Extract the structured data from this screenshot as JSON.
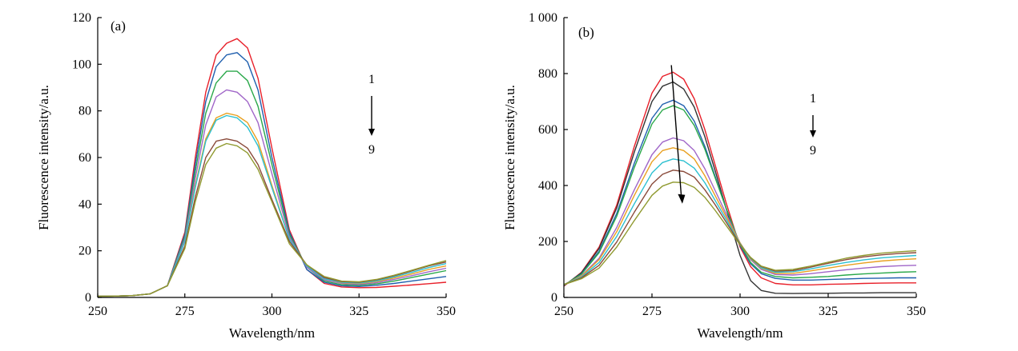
{
  "chart_data": [
    {
      "type": "line",
      "panel_label": "(a)",
      "xlabel": "Wavelength/nm",
      "ylabel": "Fluorescence intensity/a.u.",
      "xlim": [
        250,
        350
      ],
      "ylim": [
        0,
        120
      ],
      "xticks": [
        250,
        275,
        300,
        325,
        350
      ],
      "yticks": [
        0,
        20,
        40,
        60,
        80,
        100,
        120
      ],
      "xtick_labels": [
        "250",
        "275",
        "300",
        "325",
        "350"
      ],
      "ytick_labels": [
        "0",
        "20",
        "40",
        "60",
        "80",
        "100",
        "120"
      ],
      "grid": false,
      "annotation": {
        "top": "1",
        "bottom": "9",
        "direction": "down"
      },
      "x": [
        250,
        255,
        260,
        265,
        270,
        275,
        278,
        281,
        284,
        287,
        290,
        293,
        296,
        300,
        305,
        310,
        315,
        320,
        325,
        330,
        335,
        340,
        345,
        350
      ],
      "series": [
        {
          "color": "#e8202a",
          "values": [
            0.5,
            0.6,
            0.8,
            1.5,
            5,
            28,
            60,
            88,
            104,
            109,
            111,
            107,
            94,
            64,
            29,
            12,
            6,
            4.5,
            4.2,
            4.3,
            4.8,
            5.3,
            5.9,
            6.5
          ]
        },
        {
          "color": "#1f5fae",
          "values": [
            0.5,
            0.6,
            0.8,
            1.5,
            5,
            27,
            57,
            84,
            99,
            104,
            105,
            101,
            89,
            60,
            28,
            12,
            6.5,
            5,
            4.7,
            5.2,
            6,
            7,
            8,
            9
          ]
        },
        {
          "color": "#2aa84a",
          "values": [
            0.5,
            0.6,
            0.8,
            1.5,
            5,
            26,
            54,
            79,
            92,
            97,
            97,
            93,
            82,
            57,
            27,
            13,
            7,
            5.5,
            5.2,
            5.8,
            7,
            8.5,
            10,
            11.5
          ]
        },
        {
          "color": "#a066c8",
          "values": [
            0.5,
            0.6,
            0.8,
            1.5,
            5,
            25,
            51,
            74,
            86,
            89,
            88,
            84,
            75,
            53,
            26,
            13,
            7.5,
            6,
            5.6,
            6.3,
            7.7,
            9.3,
            11,
            12.5
          ]
        },
        {
          "color": "#e8a020",
          "values": [
            0.5,
            0.6,
            0.8,
            1.5,
            5,
            24,
            48,
            68,
            77,
            79,
            78,
            75,
            67,
            48,
            25,
            13.5,
            8,
            6.3,
            6,
            6.8,
            8.3,
            10,
            12,
            13.5
          ]
        },
        {
          "color": "#2cc0d0",
          "values": [
            0.5,
            0.6,
            0.8,
            1.5,
            5,
            24,
            47,
            67,
            76,
            78,
            77,
            73,
            65,
            47,
            25,
            13.5,
            8,
            6.5,
            6.2,
            7.1,
            8.8,
            10.7,
            12.8,
            14.5
          ]
        },
        {
          "color": "#8a4a3a",
          "values": [
            0.5,
            0.6,
            0.8,
            1.5,
            5,
            22,
            43,
            60,
            67,
            68,
            67,
            64,
            57,
            42,
            24,
            14,
            8.5,
            6.8,
            6.5,
            7.5,
            9.3,
            11.3,
            13.5,
            15.2
          ]
        },
        {
          "color": "#909a30",
          "values": [
            0.5,
            0.6,
            0.8,
            1.5,
            5,
            21,
            41,
            57,
            64,
            66,
            65,
            62,
            55,
            41,
            23,
            14,
            9,
            7,
            6.7,
            7.7,
            9.5,
            11.6,
            13.8,
            15.8
          ]
        }
      ]
    },
    {
      "type": "line",
      "panel_label": "(b)",
      "xlabel": "Wavelength/nm",
      "ylabel": "Fluorescence intensity/a.u.",
      "xlim": [
        250,
        350
      ],
      "ylim": [
        0,
        1000
      ],
      "xticks": [
        250,
        275,
        300,
        325,
        350
      ],
      "yticks": [
        0,
        200,
        400,
        600,
        800,
        1000
      ],
      "xtick_labels": [
        "250",
        "275",
        "300",
        "325",
        "350"
      ],
      "ytick_labels": [
        "0",
        "200",
        "400",
        "600",
        "800",
        "1 000"
      ],
      "grid": false,
      "annotation": {
        "top": "1",
        "bottom": "9",
        "direction": "down"
      },
      "x": [
        250,
        255,
        260,
        265,
        270,
        275,
        278,
        281,
        284,
        287,
        290,
        293,
        296,
        300,
        303,
        306,
        310,
        315,
        320,
        325,
        330,
        335,
        340,
        345,
        350
      ],
      "series": [
        {
          "color": "#e8202a",
          "values": [
            40,
            90,
            180,
            330,
            540,
            730,
            790,
            805,
            780,
            710,
            600,
            470,
            340,
            180,
            110,
            70,
            50,
            45,
            45,
            47,
            48,
            50,
            51,
            52,
            52
          ]
        },
        {
          "color": "#333333",
          "values": [
            42,
            88,
            175,
            320,
            520,
            700,
            755,
            770,
            745,
            680,
            575,
            450,
            320,
            150,
            60,
            25,
            15,
            14,
            15,
            15,
            16,
            16,
            17,
            17,
            17
          ]
        },
        {
          "color": "#1f5fae",
          "values": [
            43,
            85,
            165,
            300,
            480,
            640,
            690,
            705,
            685,
            630,
            540,
            430,
            320,
            185,
            120,
            85,
            68,
            62,
            62,
            64,
            66,
            68,
            69,
            70,
            70
          ]
        },
        {
          "color": "#2aa84a",
          "values": [
            44,
            83,
            160,
            290,
            465,
            620,
            670,
            685,
            670,
            615,
            530,
            425,
            320,
            190,
            125,
            90,
            75,
            70,
            72,
            75,
            80,
            84,
            87,
            90,
            92
          ]
        },
        {
          "color": "#a066c8",
          "values": [
            45,
            78,
            140,
            250,
            385,
            510,
            555,
            570,
            560,
            525,
            460,
            380,
            300,
            195,
            135,
            100,
            82,
            80,
            85,
            92,
            99,
            105,
            110,
            113,
            115
          ]
        },
        {
          "color": "#e8a020",
          "values": [
            46,
            76,
            135,
            235,
            365,
            485,
            525,
            535,
            525,
            495,
            435,
            362,
            290,
            195,
            138,
            104,
            86,
            86,
            95,
            105,
            115,
            123,
            130,
            135,
            138
          ]
        },
        {
          "color": "#2cc0d0",
          "values": [
            46,
            73,
            125,
            218,
            335,
            445,
            482,
            495,
            488,
            462,
            410,
            345,
            280,
            192,
            140,
            106,
            90,
            92,
            102,
            114,
            125,
            134,
            141,
            146,
            150
          ]
        },
        {
          "color": "#8a4a3a",
          "values": [
            46,
            70,
            115,
            198,
            305,
            405,
            440,
            455,
            450,
            430,
            385,
            330,
            270,
            190,
            142,
            110,
            94,
            96,
            108,
            122,
            135,
            145,
            152,
            157,
            160
          ]
        },
        {
          "color": "#909a30",
          "values": [
            46,
            67,
            105,
            180,
            275,
            365,
            398,
            412,
            410,
            393,
            358,
            310,
            258,
            188,
            143,
            112,
            97,
            100,
            112,
            126,
            140,
            150,
            158,
            163,
            167
          ]
        }
      ]
    }
  ]
}
